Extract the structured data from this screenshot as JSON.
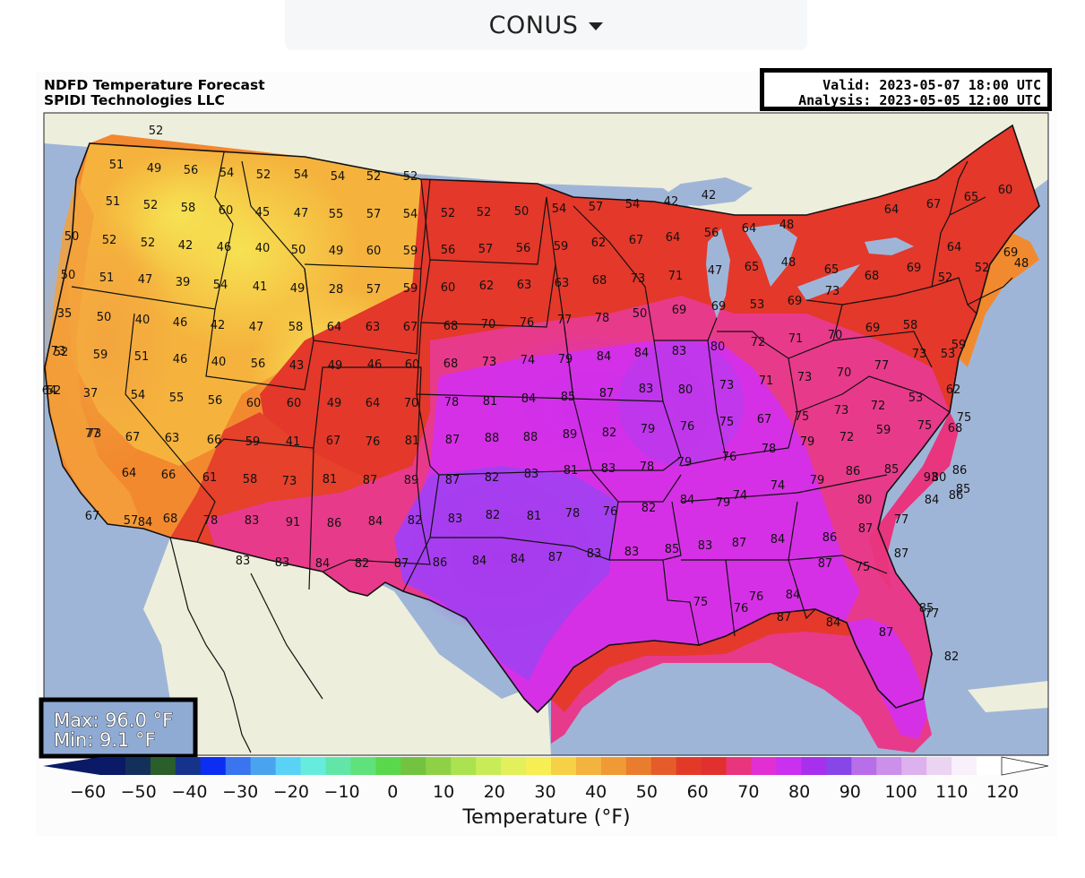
{
  "region_dropdown": {
    "selected": "CONUS"
  },
  "header": {
    "title": "NDFD Temperature Forecast",
    "organization": "SPIDI Technologies LLC",
    "valid": "Valid: 2023-05-07 18:00 UTC",
    "analysis": "Analysis: 2023-05-05 12:00 UTC"
  },
  "stats": {
    "max": "Max: 96.0 °F",
    "min": "Min: 9.1 °F"
  },
  "colorbar": {
    "label": "Temperature (°F)",
    "ticks": [
      "−60",
      "−50",
      "−40",
      "−30",
      "−20",
      "−10",
      "0",
      "10",
      "20",
      "30",
      "40",
      "50",
      "60",
      "70",
      "80",
      "90",
      "100",
      "110",
      "120"
    ],
    "colors": [
      "#0b1a66",
      "#13305a",
      "#2a5e2a",
      "#16338c",
      "#0c2df2",
      "#3a74ee",
      "#4aa3ef",
      "#5ad2f6",
      "#66ecdd",
      "#61e6a7",
      "#5fe27c",
      "#5ad84c",
      "#73c340",
      "#8fd146",
      "#abe24f",
      "#c8ec57",
      "#e3f05b",
      "#f6ee53",
      "#f6d046",
      "#f4b33f",
      "#f09a35",
      "#ea7c2e",
      "#e55c2a",
      "#e33a28",
      "#e2302f",
      "#e8357e",
      "#e22fd4",
      "#c930ef",
      "#a630ed",
      "#8747e8",
      "#b86ee8",
      "#cc8fea",
      "#ddb1ee",
      "#ebd3f2",
      "#f8f0fb",
      "#ffffff"
    ]
  },
  "temp_labels": [
    {
      "v": "52"
    },
    {
      "v": "51"
    },
    {
      "v": "49"
    },
    {
      "v": "56"
    },
    {
      "v": "54"
    },
    {
      "v": "52"
    },
    {
      "v": "54"
    },
    {
      "v": "54"
    },
    {
      "v": "52"
    },
    {
      "v": "52"
    },
    {
      "v": "51"
    },
    {
      "v": "52"
    },
    {
      "v": "58"
    },
    {
      "v": "60"
    },
    {
      "v": "45"
    },
    {
      "v": "47"
    },
    {
      "v": "55"
    },
    {
      "v": "57"
    },
    {
      "v": "54"
    },
    {
      "v": "52"
    },
    {
      "v": "52"
    },
    {
      "v": "50"
    },
    {
      "v": "54"
    },
    {
      "v": "57"
    },
    {
      "v": "54"
    },
    {
      "v": "42"
    },
    {
      "v": "42"
    },
    {
      "v": "67"
    },
    {
      "v": "65"
    },
    {
      "v": "60"
    },
    {
      "v": "50"
    },
    {
      "v": "52"
    },
    {
      "v": "52"
    },
    {
      "v": "42"
    },
    {
      "v": "46"
    },
    {
      "v": "40"
    },
    {
      "v": "50"
    },
    {
      "v": "49"
    },
    {
      "v": "60"
    },
    {
      "v": "59"
    },
    {
      "v": "56"
    },
    {
      "v": "57"
    },
    {
      "v": "56"
    },
    {
      "v": "59"
    },
    {
      "v": "62"
    },
    {
      "v": "67"
    },
    {
      "v": "64"
    },
    {
      "v": "56"
    },
    {
      "v": "64"
    },
    {
      "v": "48"
    },
    {
      "v": "64"
    },
    {
      "v": "64"
    },
    {
      "v": "69"
    },
    {
      "v": "50"
    },
    {
      "v": "51"
    },
    {
      "v": "47"
    },
    {
      "v": "39"
    },
    {
      "v": "54"
    },
    {
      "v": "41"
    },
    {
      "v": "49"
    },
    {
      "v": "28"
    },
    {
      "v": "57"
    },
    {
      "v": "59"
    },
    {
      "v": "60"
    },
    {
      "v": "62"
    },
    {
      "v": "63"
    },
    {
      "v": "63"
    },
    {
      "v": "68"
    },
    {
      "v": "73"
    },
    {
      "v": "71"
    },
    {
      "v": "47"
    },
    {
      "v": "65"
    },
    {
      "v": "48"
    },
    {
      "v": "65"
    },
    {
      "v": "68"
    },
    {
      "v": "69"
    },
    {
      "v": "52"
    },
    {
      "v": "52"
    },
    {
      "v": "48"
    },
    {
      "v": "35"
    },
    {
      "v": "50"
    },
    {
      "v": "40"
    },
    {
      "v": "46"
    },
    {
      "v": "42"
    },
    {
      "v": "47"
    },
    {
      "v": "58"
    },
    {
      "v": "64"
    },
    {
      "v": "63"
    },
    {
      "v": "67"
    },
    {
      "v": "68"
    },
    {
      "v": "70"
    },
    {
      "v": "76"
    },
    {
      "v": "77"
    },
    {
      "v": "78"
    },
    {
      "v": "50"
    },
    {
      "v": "69"
    },
    {
      "v": "69"
    },
    {
      "v": "53"
    },
    {
      "v": "69"
    },
    {
      "v": "73"
    },
    {
      "v": "73"
    },
    {
      "v": "52"
    },
    {
      "v": "59"
    },
    {
      "v": "51"
    },
    {
      "v": "46"
    },
    {
      "v": "40"
    },
    {
      "v": "56"
    },
    {
      "v": "43"
    },
    {
      "v": "49"
    },
    {
      "v": "46"
    },
    {
      "v": "60"
    },
    {
      "v": "68"
    },
    {
      "v": "73"
    },
    {
      "v": "74"
    },
    {
      "v": "79"
    },
    {
      "v": "84"
    },
    {
      "v": "84"
    },
    {
      "v": "83"
    },
    {
      "v": "80"
    },
    {
      "v": "72"
    },
    {
      "v": "71"
    },
    {
      "v": "70"
    },
    {
      "v": "69"
    },
    {
      "v": "58"
    },
    {
      "v": "53"
    },
    {
      "v": "52"
    },
    {
      "v": "37"
    },
    {
      "v": "54"
    },
    {
      "v": "55"
    },
    {
      "v": "56"
    },
    {
      "v": "60"
    },
    {
      "v": "60"
    },
    {
      "v": "49"
    },
    {
      "v": "64"
    },
    {
      "v": "70"
    },
    {
      "v": "78"
    },
    {
      "v": "81"
    },
    {
      "v": "84"
    },
    {
      "v": "85"
    },
    {
      "v": "87"
    },
    {
      "v": "83"
    },
    {
      "v": "80"
    },
    {
      "v": "73"
    },
    {
      "v": "71"
    },
    {
      "v": "73"
    },
    {
      "v": "70"
    },
    {
      "v": "77"
    },
    {
      "v": "73"
    },
    {
      "v": "59"
    },
    {
      "v": "64"
    },
    {
      "v": "73"
    },
    {
      "v": "67"
    },
    {
      "v": "63"
    },
    {
      "v": "66"
    },
    {
      "v": "59"
    },
    {
      "v": "41"
    },
    {
      "v": "67"
    },
    {
      "v": "76"
    },
    {
      "v": "81"
    },
    {
      "v": "87"
    },
    {
      "v": "88"
    },
    {
      "v": "88"
    },
    {
      "v": "89"
    },
    {
      "v": "82"
    },
    {
      "v": "79"
    },
    {
      "v": "76"
    },
    {
      "v": "75"
    },
    {
      "v": "67"
    },
    {
      "v": "75"
    },
    {
      "v": "73"
    },
    {
      "v": "72"
    },
    {
      "v": "53"
    },
    {
      "v": "62"
    },
    {
      "v": "68"
    },
    {
      "v": "77"
    },
    {
      "v": "64"
    },
    {
      "v": "66"
    },
    {
      "v": "61"
    },
    {
      "v": "58"
    },
    {
      "v": "73"
    },
    {
      "v": "81"
    },
    {
      "v": "87"
    },
    {
      "v": "89"
    },
    {
      "v": "87"
    },
    {
      "v": "82"
    },
    {
      "v": "83"
    },
    {
      "v": "81"
    },
    {
      "v": "83"
    },
    {
      "v": "78"
    },
    {
      "v": "79"
    },
    {
      "v": "76"
    },
    {
      "v": "78"
    },
    {
      "v": "79"
    },
    {
      "v": "72"
    },
    {
      "v": "59"
    },
    {
      "v": "75"
    },
    {
      "v": "75"
    },
    {
      "v": "80"
    },
    {
      "v": "67"
    },
    {
      "v": "57"
    },
    {
      "v": "68"
    },
    {
      "v": "78"
    },
    {
      "v": "83"
    },
    {
      "v": "91"
    },
    {
      "v": "86"
    },
    {
      "v": "84"
    },
    {
      "v": "82"
    },
    {
      "v": "83"
    },
    {
      "v": "82"
    },
    {
      "v": "81"
    },
    {
      "v": "78"
    },
    {
      "v": "76"
    },
    {
      "v": "82"
    },
    {
      "v": "84"
    },
    {
      "v": "79"
    },
    {
      "v": "74"
    },
    {
      "v": "74"
    },
    {
      "v": "79"
    },
    {
      "v": "86"
    },
    {
      "v": "85"
    },
    {
      "v": "93"
    },
    {
      "v": "86"
    },
    {
      "v": "80"
    },
    {
      "v": "86"
    },
    {
      "v": "84"
    },
    {
      "v": "83"
    },
    {
      "v": "83"
    },
    {
      "v": "84"
    },
    {
      "v": "82"
    },
    {
      "v": "87"
    },
    {
      "v": "86"
    },
    {
      "v": "84"
    },
    {
      "v": "84"
    },
    {
      "v": "87"
    },
    {
      "v": "83"
    },
    {
      "v": "83"
    },
    {
      "v": "85"
    },
    {
      "v": "83"
    },
    {
      "v": "87"
    },
    {
      "v": "84"
    },
    {
      "v": "86"
    },
    {
      "v": "87"
    },
    {
      "v": "77"
    },
    {
      "v": "84"
    },
    {
      "v": "85"
    },
    {
      "v": "87"
    },
    {
      "v": "75"
    },
    {
      "v": "87"
    },
    {
      "v": "84"
    },
    {
      "v": "76"
    },
    {
      "v": "75"
    },
    {
      "v": "76"
    },
    {
      "v": "87"
    },
    {
      "v": "84"
    },
    {
      "v": "87"
    },
    {
      "v": "77"
    },
    {
      "v": "85"
    },
    {
      "v": "82"
    }
  ]
}
